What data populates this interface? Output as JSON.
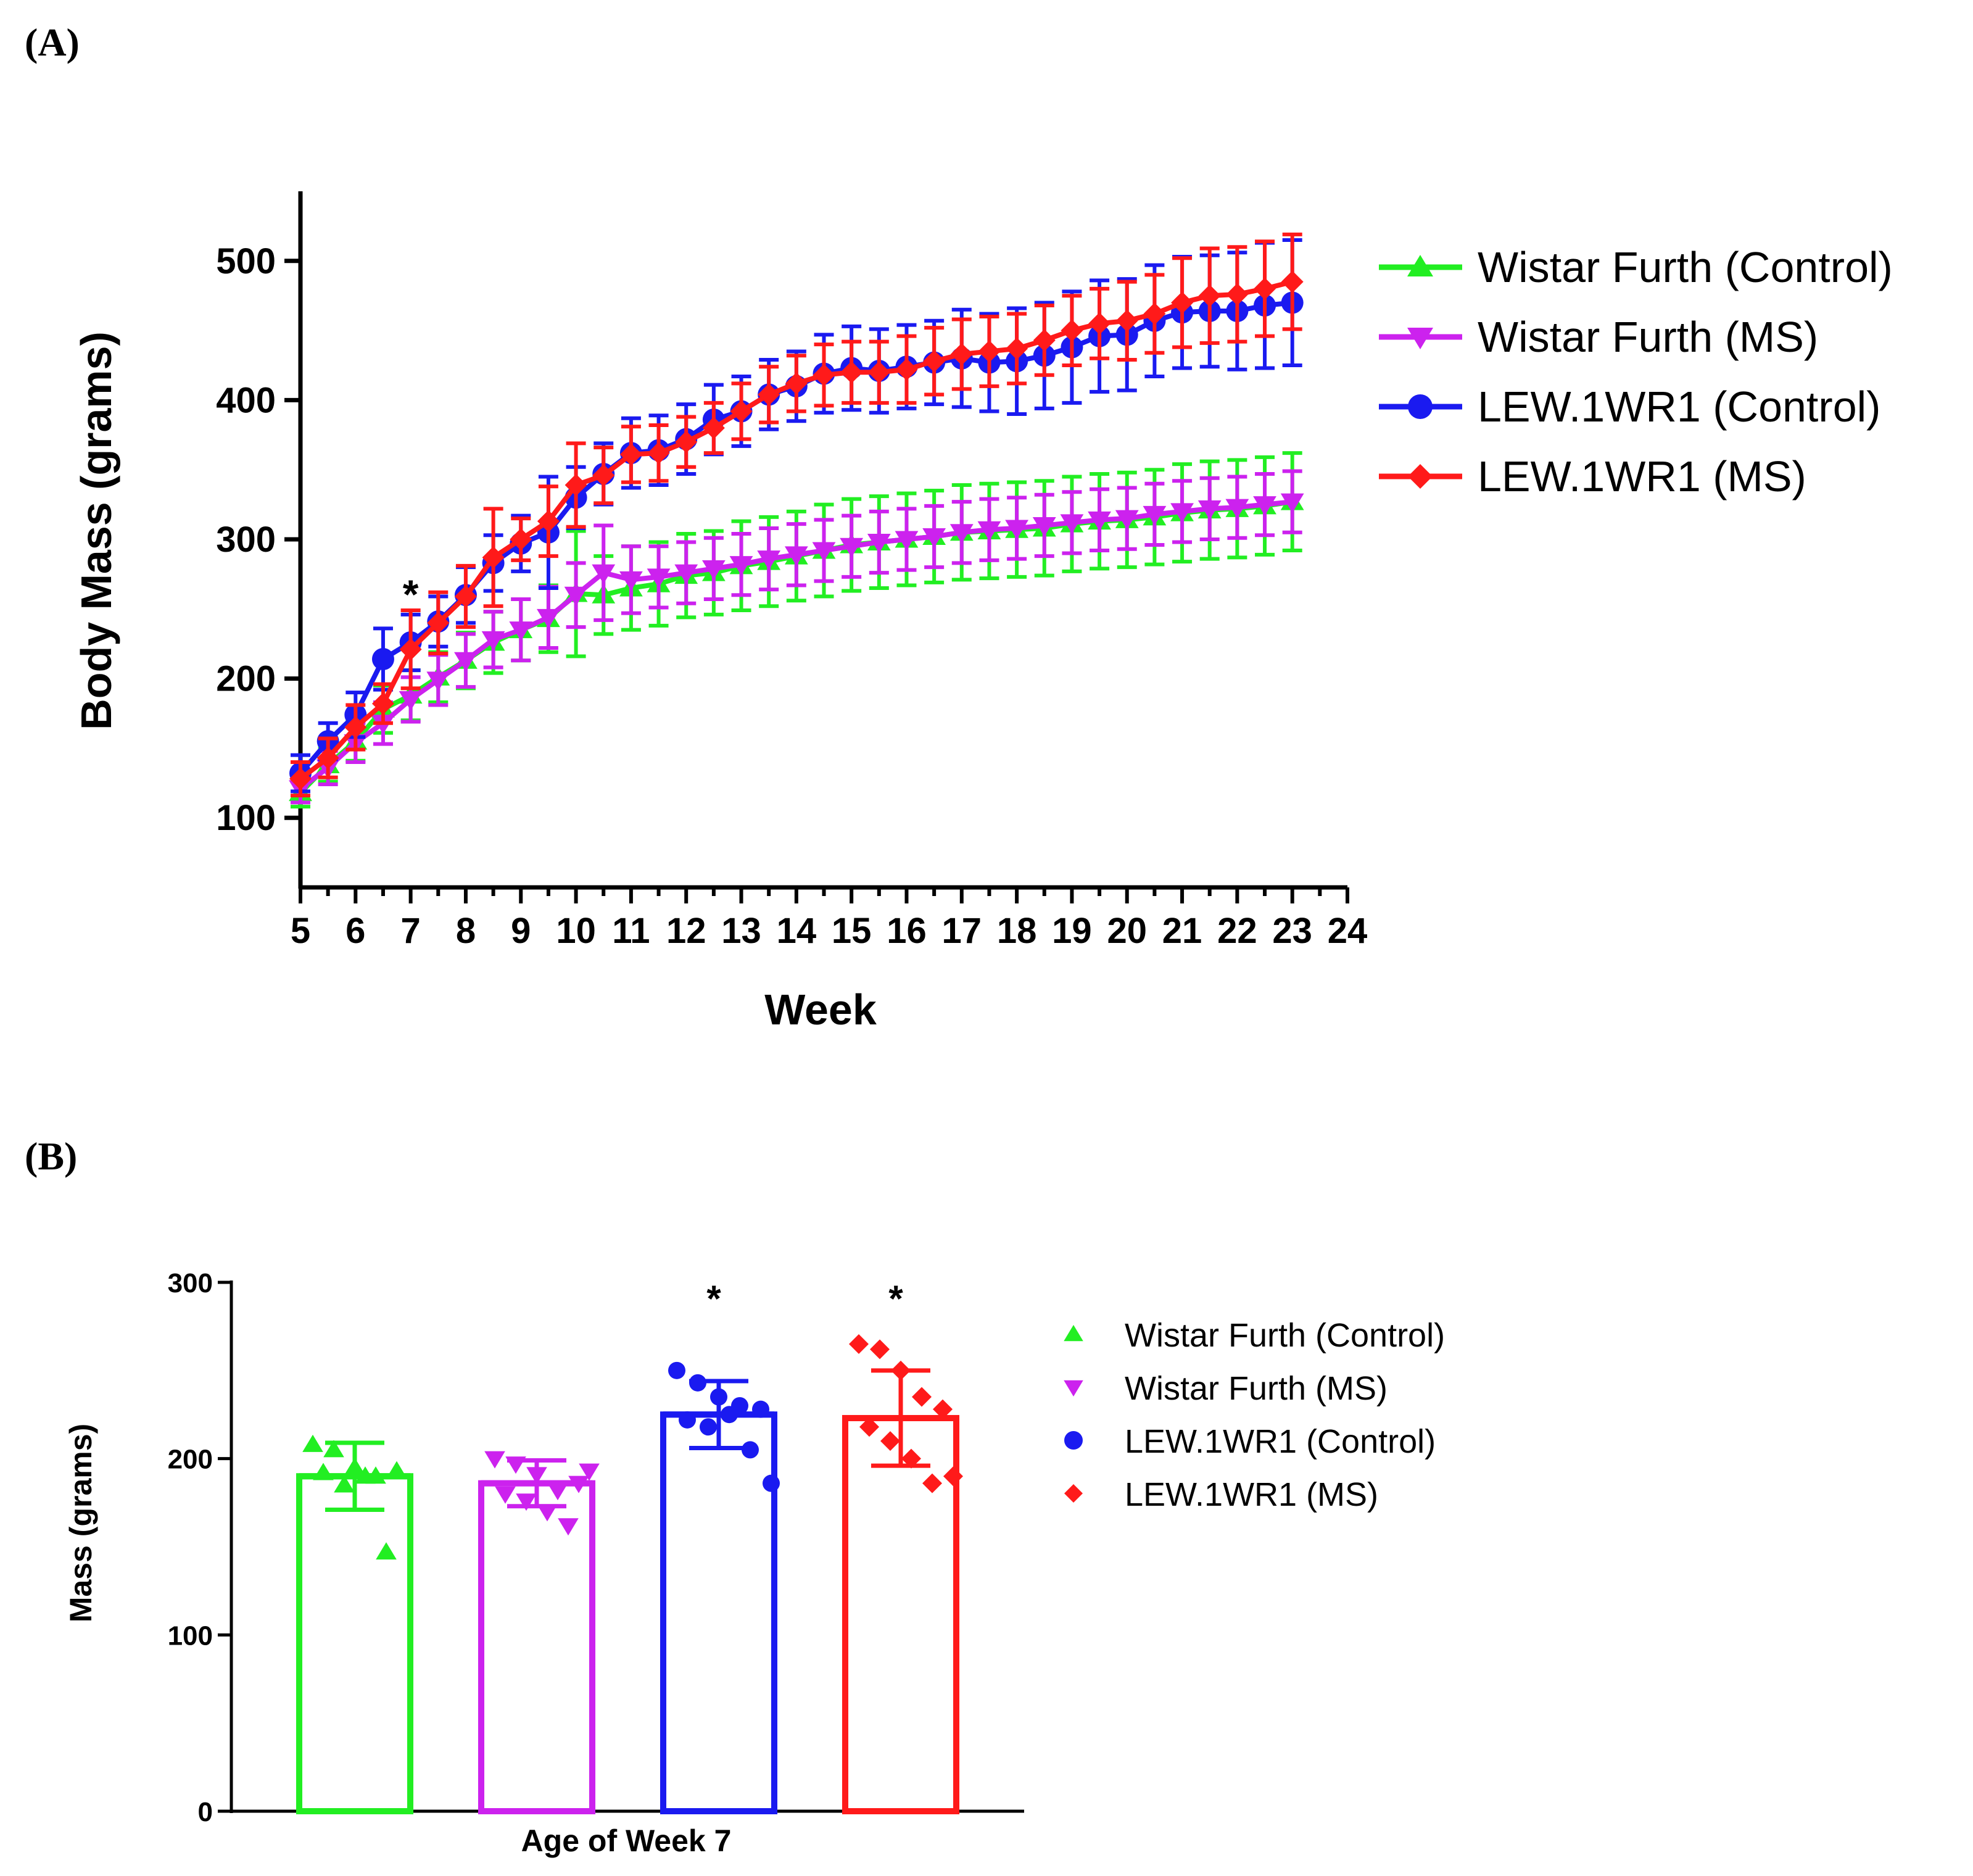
{
  "colors": {
    "wf_control": "#22ee22",
    "wf_ms": "#cc22ee",
    "lew_control": "#1a1af0",
    "lew_ms": "#ff1a1a"
  },
  "chart_data": [
    {
      "panel": "(A)",
      "type": "line",
      "title": "",
      "xlabel": "Week",
      "ylabel": "Body Mass (grams)",
      "xlim": [
        5,
        24
      ],
      "ylim": [
        50,
        550
      ],
      "xticks": [
        "5",
        "6",
        "7",
        "8",
        "9",
        "10",
        "11",
        "12",
        "13",
        "14",
        "15",
        "16",
        "17",
        "18",
        "19",
        "20",
        "21",
        "22",
        "23",
        "24"
      ],
      "yticks": [
        "100",
        "200",
        "300",
        "400",
        "500"
      ],
      "x": [
        5,
        5.5,
        6,
        6.5,
        7,
        7.5,
        8,
        8.5,
        9,
        9.5,
        10,
        10.5,
        11,
        11.5,
        12,
        12.5,
        13,
        13.5,
        14,
        14.5,
        15,
        15.5,
        16,
        16.5,
        17,
        17.5,
        18,
        18.5,
        19,
        19.5,
        20,
        20.5,
        21,
        21.5,
        22,
        22.5,
        23
      ],
      "annotations": [
        {
          "text": "*",
          "x": 7,
          "y": 268
        }
      ],
      "series": [
        {
          "name": "Wistar Furth (Control)",
          "color_key": "wf_control",
          "marker": "triangle-up",
          "values": [
            118,
            138,
            155,
            178,
            188,
            201,
            213,
            226,
            235,
            243,
            261,
            260,
            265,
            268,
            274,
            276,
            281,
            284,
            288,
            292,
            296,
            298,
            300,
            302,
            305,
            306,
            307,
            308,
            311,
            313,
            314,
            316,
            319,
            321,
            322,
            324,
            327
          ],
          "errors": [
            10,
            12,
            14,
            17,
            18,
            18,
            20,
            22,
            22,
            24,
            45,
            28,
            30,
            30,
            30,
            30,
            32,
            32,
            32,
            33,
            33,
            33,
            33,
            33,
            34,
            34,
            34,
            34,
            34,
            34,
            34,
            34,
            35,
            35,
            35,
            35,
            35
          ]
        },
        {
          "name": "Wistar Furth (MS)",
          "color_key": "wf_ms",
          "marker": "triangle-down",
          "values": [
            121,
            136,
            154,
            168,
            185,
            199,
            213,
            228,
            235,
            244,
            260,
            276,
            271,
            273,
            276,
            279,
            282,
            286,
            289,
            292,
            295,
            298,
            300,
            302,
            305,
            307,
            308,
            310,
            312,
            314,
            315,
            318,
            320,
            322,
            323,
            325,
            327
          ],
          "errors": [
            10,
            12,
            14,
            15,
            16,
            18,
            19,
            20,
            22,
            22,
            23,
            34,
            24,
            22,
            22,
            22,
            22,
            22,
            22,
            22,
            22,
            22,
            22,
            22,
            22,
            22,
            22,
            22,
            22,
            22,
            22,
            22,
            22,
            22,
            22,
            22,
            22
          ]
        },
        {
          "name": "LEW.1WR1 (Control)",
          "color_key": "lew_control",
          "marker": "circle",
          "values": [
            132,
            155,
            174,
            214,
            226,
            241,
            260,
            283,
            297,
            305,
            330,
            347,
            362,
            364,
            372,
            386,
            392,
            404,
            410,
            419,
            423,
            421,
            424,
            427,
            430,
            427,
            428,
            432,
            438,
            446,
            447,
            457,
            463,
            464,
            464,
            468,
            470
          ],
          "errors": [
            13,
            13,
            16,
            22,
            20,
            18,
            20,
            20,
            20,
            40,
            22,
            22,
            25,
            25,
            25,
            25,
            25,
            25,
            25,
            28,
            30,
            30,
            30,
            30,
            35,
            35,
            38,
            38,
            40,
            40,
            40,
            40,
            40,
            40,
            42,
            45,
            45
          ]
        },
        {
          "name": "LEW.1WR1 (MS)",
          "color_key": "lew_ms",
          "marker": "diamond",
          "values": [
            128,
            143,
            165,
            182,
            221,
            240,
            259,
            287,
            300,
            313,
            339,
            346,
            361,
            362,
            370,
            380,
            392,
            404,
            412,
            418,
            420,
            420,
            422,
            428,
            433,
            435,
            437,
            443,
            450,
            455,
            457,
            462,
            470,
            475,
            476,
            480,
            485
          ],
          "errors": [
            12,
            14,
            16,
            14,
            28,
            22,
            22,
            35,
            15,
            25,
            30,
            20,
            20,
            20,
            18,
            18,
            20,
            20,
            20,
            22,
            22,
            22,
            24,
            24,
            25,
            25,
            25,
            25,
            25,
            25,
            28,
            28,
            32,
            34,
            34,
            34,
            34
          ]
        }
      ]
    },
    {
      "panel": "(B)",
      "type": "bar",
      "title": "",
      "xlabel": "Age of Week 7",
      "ylabel": "Mass (grams)",
      "ylim": [
        0,
        300
      ],
      "yticks": [
        "0",
        "100",
        "200",
        "300"
      ],
      "categories": [
        "Wistar Furth (Control)",
        "Wistar Furth (MS)",
        "LEW.1WR1 (Control)",
        "LEW.1WR1 (MS)"
      ],
      "values": [
        190,
        186,
        225,
        223
      ],
      "errors": [
        19,
        13,
        19,
        27
      ],
      "significance": [
        "",
        "",
        "*",
        "*"
      ],
      "points": [
        [
          208,
          205,
          195,
          190,
          193,
          192,
          185,
          190,
          147
        ],
        [
          200,
          197,
          191,
          182,
          186,
          180,
          176,
          170,
          162,
          193
        ],
        [
          250,
          243,
          235,
          230,
          228,
          222,
          218,
          225,
          205,
          186
        ],
        [
          265,
          262,
          250,
          235,
          228,
          218,
          210,
          200,
          186,
          190
        ]
      ]
    }
  ],
  "legend_a": [
    "Wistar Furth (Control)",
    "Wistar Furth (MS)",
    "LEW.1WR1 (Control)",
    "LEW.1WR1 (MS)"
  ],
  "legend_b": [
    "Wistar Furth (Control)",
    "Wistar Furth (MS)",
    "LEW.1WR1 (Control)",
    "LEW.1WR1 (MS)"
  ]
}
